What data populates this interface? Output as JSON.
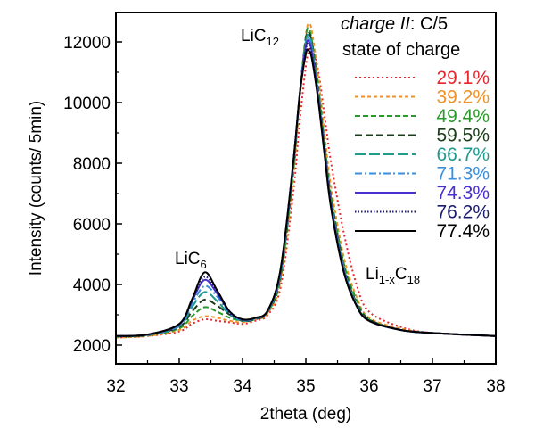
{
  "chart_data": {
    "type": "line",
    "title": "",
    "xlabel": "2theta (deg)",
    "ylabel": "Intensity (counts/ 5min)",
    "xlim": [
      32,
      38
    ],
    "ylim": [
      1500,
      13100
    ],
    "xticks": [
      32,
      33,
      34,
      35,
      36,
      37,
      38
    ],
    "yticks": [
      2000,
      4000,
      6000,
      8000,
      10000,
      12000
    ],
    "grid": false,
    "legend": {
      "placement": "top-right",
      "title_italic": "charge II",
      "title_rest": ": C/5",
      "subtitle": "state of charge"
    },
    "annotations": [
      {
        "base": "LiC",
        "sub": "12",
        "x": 34.8,
        "y": 12300
      },
      {
        "base": "LiC",
        "sub": "6",
        "x": 33.4,
        "y": 4900
      },
      {
        "base": "Li",
        "sub": "1-x",
        "base2": "C",
        "sub2": "18",
        "x": 36.2,
        "y": 4200
      }
    ],
    "x": [
      32,
      32.5,
      33,
      33.2,
      33.4,
      33.6,
      33.8,
      34,
      34.2,
      34.4,
      34.6,
      34.8,
      34.9,
      35,
      35.05,
      35.1,
      35.2,
      35.3,
      35.4,
      35.6,
      35.8,
      36,
      36.5,
      37,
      38
    ],
    "series": [
      {
        "name": "29.1%",
        "color": "#e8262e",
        "dash": "2,3",
        "values": [
          2250,
          2300,
          2450,
          2700,
          2850,
          2800,
          2750,
          2700,
          2800,
          3000,
          3900,
          7000,
          9300,
          11200,
          11700,
          11900,
          11000,
          9500,
          8000,
          5700,
          4000,
          3100,
          2600,
          2400,
          2300
        ]
      },
      {
        "name": "39.2%",
        "color": "#f0922a",
        "dash": "4,3",
        "values": [
          2250,
          2300,
          2500,
          2800,
          2950,
          2900,
          2800,
          2750,
          2850,
          3050,
          4100,
          7500,
          10000,
          12200,
          12600,
          12300,
          10800,
          8900,
          7200,
          4900,
          3600,
          2900,
          2550,
          2400,
          2300
        ]
      },
      {
        "name": "49.4%",
        "color": "#2a9a2a",
        "dash": "6,3",
        "values": [
          2280,
          2320,
          2550,
          2950,
          3250,
          3100,
          2900,
          2800,
          2850,
          3100,
          4200,
          7700,
          10200,
          12200,
          12400,
          12000,
          10500,
          8600,
          6900,
          4700,
          3500,
          2850,
          2500,
          2400,
          2300
        ]
      },
      {
        "name": "59.5%",
        "color": "#1c3d1c",
        "dash": "8,4",
        "values": [
          2290,
          2330,
          2600,
          3100,
          3500,
          3300,
          3000,
          2800,
          2850,
          3100,
          4300,
          7800,
          10200,
          12100,
          12300,
          11900,
          10300,
          8500,
          6800,
          4600,
          3400,
          2850,
          2500,
          2400,
          2300
        ]
      },
      {
        "name": "66.7%",
        "color": "#1f9a8f",
        "dash": "12,4",
        "values": [
          2290,
          2340,
          2620,
          3250,
          3750,
          3450,
          3000,
          2800,
          2880,
          3120,
          4350,
          7900,
          10200,
          12000,
          12200,
          11800,
          10200,
          8400,
          6700,
          4550,
          3350,
          2800,
          2500,
          2400,
          2300
        ]
      },
      {
        "name": "71.3%",
        "color": "#3c8fdc",
        "dash": "8,3,2,3",
        "values": [
          2300,
          2340,
          2650,
          3350,
          3950,
          3600,
          3050,
          2820,
          2880,
          3130,
          4400,
          7950,
          10200,
          11950,
          12100,
          11700,
          10150,
          8350,
          6650,
          4500,
          3330,
          2800,
          2500,
          2400,
          2300
        ]
      },
      {
        "name": "74.3%",
        "color": "#4a2fd0",
        "dash": "",
        "values": [
          2300,
          2350,
          2680,
          3450,
          4150,
          3700,
          3100,
          2840,
          2890,
          3140,
          4450,
          8000,
          10200,
          11850,
          12000,
          11600,
          10100,
          8300,
          6600,
          4450,
          3300,
          2800,
          2500,
          2400,
          2300
        ]
      },
      {
        "name": "76.2%",
        "color": "#1c1c6e",
        "dash": "1.5,2",
        "values": [
          2300,
          2350,
          2690,
          3450,
          4250,
          3750,
          3050,
          2850,
          2900,
          3150,
          4480,
          8000,
          10200,
          11750,
          11900,
          11500,
          10050,
          8250,
          6550,
          4420,
          3300,
          2800,
          2500,
          2400,
          2300
        ]
      },
      {
        "name": "77.4%",
        "color": "#000000",
        "dash": "",
        "values": [
          2300,
          2350,
          2700,
          3500,
          4400,
          3800,
          3100,
          2850,
          2900,
          3150,
          4500,
          8000,
          10200,
          11600,
          11700,
          11400,
          10000,
          8200,
          6500,
          4400,
          3300,
          2800,
          2500,
          2400,
          2300
        ]
      }
    ]
  }
}
